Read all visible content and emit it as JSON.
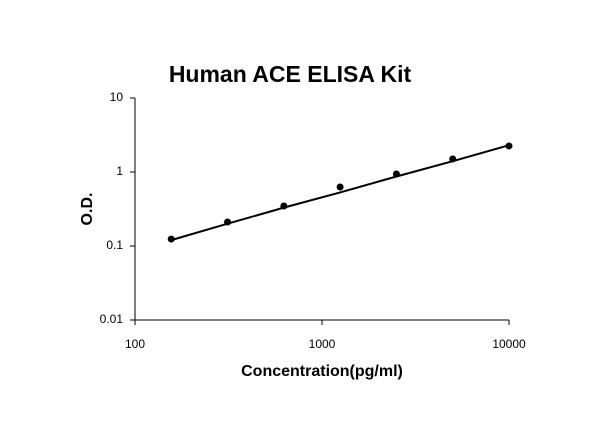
{
  "chart_data": {
    "type": "scatter",
    "title": "Human ACE ELISA Kit",
    "x_label": "Concentration(pg/ml)",
    "y_label": "O.D.",
    "x": [
      156.25,
      312.5,
      625,
      1250,
      2500,
      5000,
      10000
    ],
    "series": [
      {
        "kind": "points",
        "color": "#000000",
        "values": [
          0.124,
          0.211,
          0.347,
          0.627,
          0.94,
          1.5,
          2.25
        ]
      },
      {
        "kind": "line",
        "color": "#000000",
        "values": [
          0.12,
          0.2,
          0.33,
          0.53,
          0.87,
          1.4,
          2.3
        ]
      }
    ],
    "xscale": "log",
    "yscale": "log",
    "xlim": [
      100,
      10000
    ],
    "xticks": [
      100,
      1000,
      10000
    ],
    "ylim": [
      0.01,
      10
    ],
    "yticks": [
      0.01,
      0.1,
      1,
      10
    ]
  }
}
